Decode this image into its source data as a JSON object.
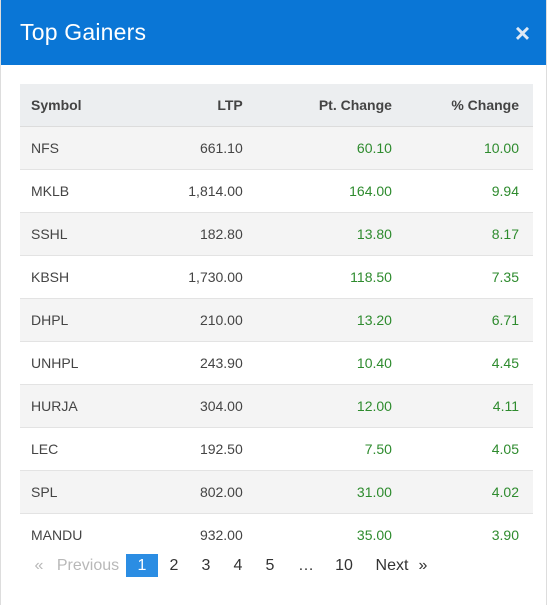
{
  "modal": {
    "title": "Top Gainers",
    "close_icon": "×"
  },
  "table": {
    "headers": {
      "symbol": "Symbol",
      "ltp": "LTP",
      "pt_change": "Pt. Change",
      "pct_change": "% Change"
    },
    "rows": [
      {
        "symbol": "NFS",
        "ltp": "661.10",
        "pt_change": "60.10",
        "pct_change": "10.00"
      },
      {
        "symbol": "MKLB",
        "ltp": "1,814.00",
        "pt_change": "164.00",
        "pct_change": "9.94"
      },
      {
        "symbol": "SSHL",
        "ltp": "182.80",
        "pt_change": "13.80",
        "pct_change": "8.17"
      },
      {
        "symbol": "KBSH",
        "ltp": "1,730.00",
        "pt_change": "118.50",
        "pct_change": "7.35"
      },
      {
        "symbol": "DHPL",
        "ltp": "210.00",
        "pt_change": "13.20",
        "pct_change": "6.71"
      },
      {
        "symbol": "UNHPL",
        "ltp": "243.90",
        "pt_change": "10.40",
        "pct_change": "4.45"
      },
      {
        "symbol": "HURJA",
        "ltp": "304.00",
        "pt_change": "12.00",
        "pct_change": "4.11"
      },
      {
        "symbol": "LEC",
        "ltp": "192.50",
        "pt_change": "7.50",
        "pct_change": "4.05"
      },
      {
        "symbol": "SPL",
        "ltp": "802.00",
        "pt_change": "31.00",
        "pct_change": "4.02"
      },
      {
        "symbol": "MANDU",
        "ltp": "932.00",
        "pt_change": "35.00",
        "pct_change": "3.90"
      }
    ]
  },
  "colors": {
    "header_bg": "#0a76d6",
    "gain": "#2e8b2e",
    "active_page": "#2b8de3"
  },
  "pagination": {
    "first_arrow": "«",
    "previous": "Previous",
    "pages": [
      "1",
      "2",
      "3",
      "4",
      "5"
    ],
    "active_page": "1",
    "ellipsis": "…",
    "last_page": "10",
    "next": "Next",
    "last_arrow": "»"
  }
}
